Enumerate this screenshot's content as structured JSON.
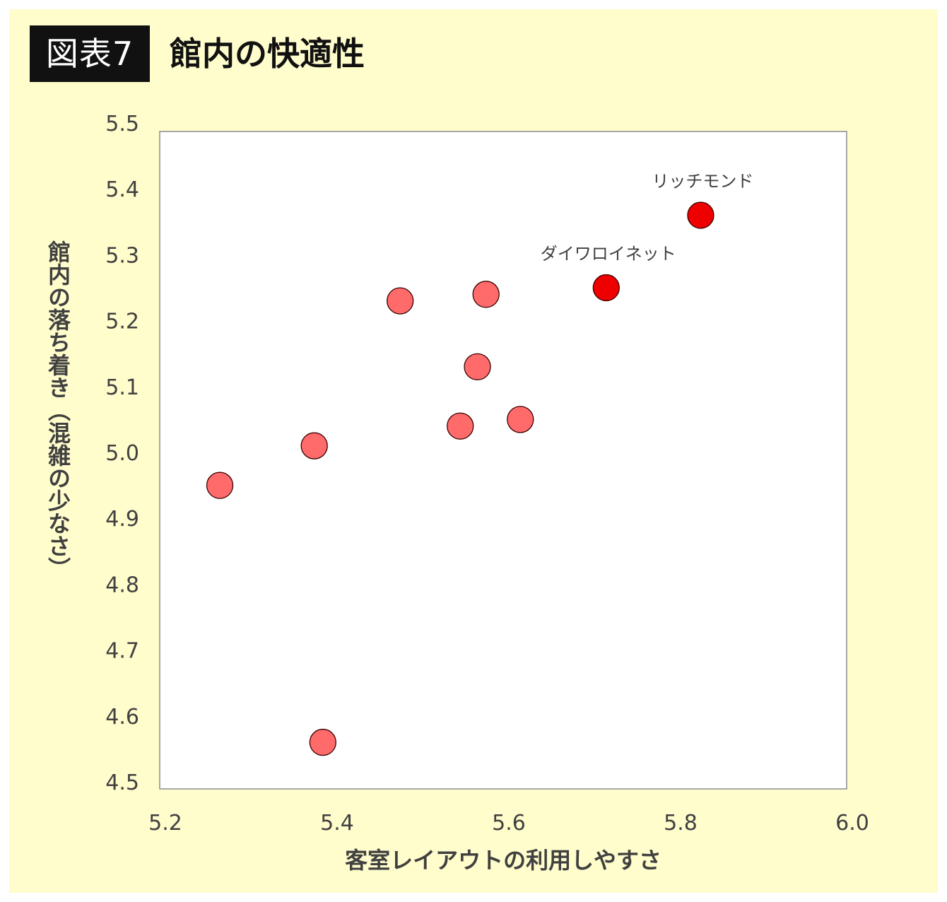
{
  "figure": {
    "badge": "図表7",
    "title": "館内の快適性"
  },
  "chart_data": {
    "type": "scatter",
    "title": "館内の快適性",
    "xlabel": "客室レイアウトの利用しやすさ",
    "ylabel": "館内の落ち着き（混雑の少なさ）",
    "xlim": [
      5.2,
      6.0
    ],
    "ylim": [
      4.5,
      5.5
    ],
    "xticks": [
      "5.2",
      "5.4",
      "5.6",
      "5.8",
      "6.0"
    ],
    "yticks": [
      "4.5",
      "4.6",
      "4.7",
      "4.8",
      "4.9",
      "5.0",
      "5.1",
      "5.2",
      "5.3",
      "5.4",
      "5.5"
    ],
    "grid": false,
    "points": [
      {
        "x": 5.27,
        "y": 4.95,
        "highlight": false,
        "label": ""
      },
      {
        "x": 5.38,
        "y": 5.01,
        "highlight": false,
        "label": ""
      },
      {
        "x": 5.39,
        "y": 4.56,
        "highlight": false,
        "label": ""
      },
      {
        "x": 5.48,
        "y": 5.23,
        "highlight": false,
        "label": ""
      },
      {
        "x": 5.55,
        "y": 5.04,
        "highlight": false,
        "label": ""
      },
      {
        "x": 5.57,
        "y": 5.13,
        "highlight": false,
        "label": ""
      },
      {
        "x": 5.58,
        "y": 5.24,
        "highlight": false,
        "label": ""
      },
      {
        "x": 5.62,
        "y": 5.05,
        "highlight": false,
        "label": ""
      },
      {
        "x": 5.72,
        "y": 5.25,
        "highlight": true,
        "label": "ダイワロイネット"
      },
      {
        "x": 5.83,
        "y": 5.36,
        "highlight": true,
        "label": "リッチモンド"
      }
    ],
    "colors": {
      "point": "#ff6b6b",
      "highlight": "#ee0000",
      "point_edge": "#3a0000",
      "plot_bg": "#ffffff",
      "plot_border": "#8c8c8c",
      "frame_bg": "#fffdcc"
    }
  }
}
